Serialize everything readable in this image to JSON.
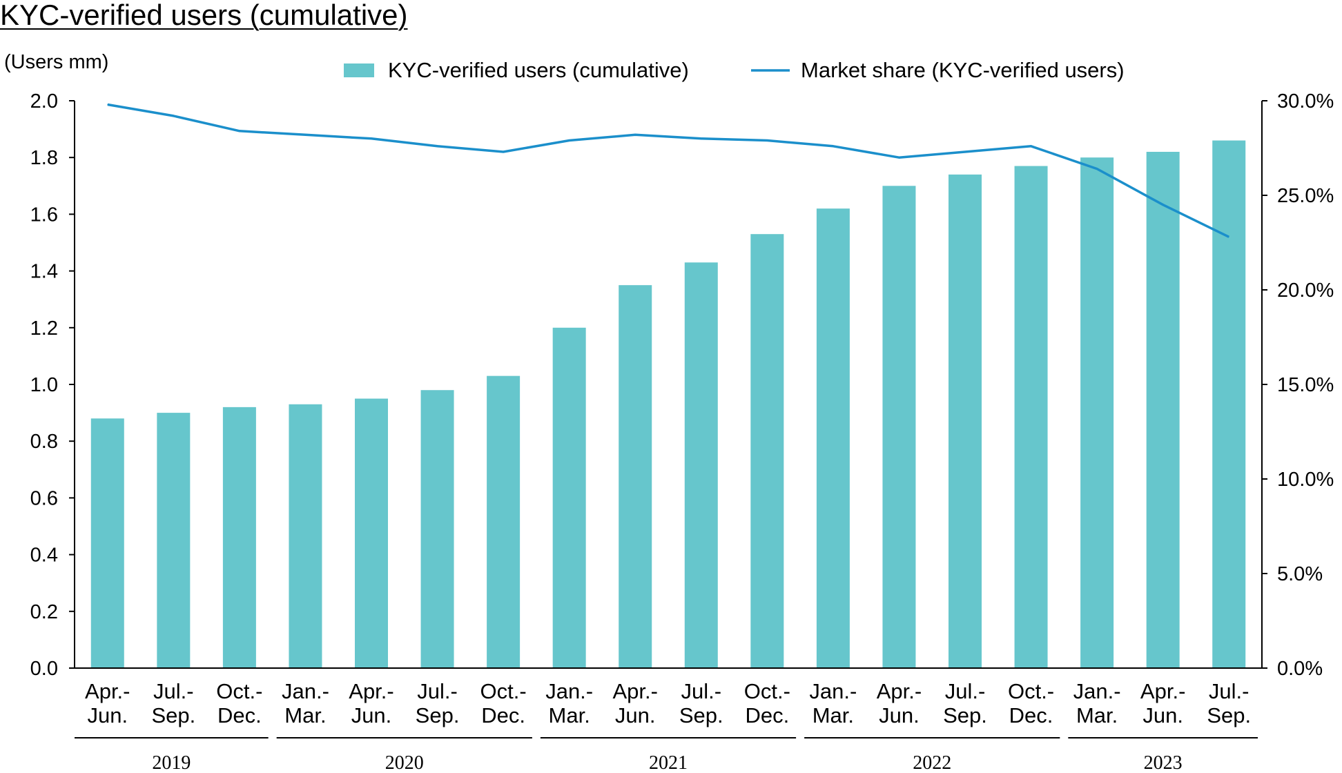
{
  "title": "KYC-verified users (cumulative)",
  "units_label": "(Users mm)",
  "colors": {
    "bar": "#66C6CC",
    "line": "#1B8FCB",
    "axis": "#000000"
  },
  "chart_data": {
    "type": "bar",
    "title": "KYC-verified users (cumulative)",
    "categories": [
      [
        "Apr.-",
        "Jun."
      ],
      [
        "Jul.-",
        "Sep."
      ],
      [
        "Oct.-",
        "Dec."
      ],
      [
        "Jan.-",
        "Mar."
      ],
      [
        "Apr.-",
        "Jun."
      ],
      [
        "Jul.-",
        "Sep."
      ],
      [
        "Oct.-",
        "Dec."
      ],
      [
        "Jan.-",
        "Mar."
      ],
      [
        "Apr.-",
        "Jun."
      ],
      [
        "Jul.-",
        "Sep."
      ],
      [
        "Oct.-",
        "Dec."
      ],
      [
        "Jan.-",
        "Mar."
      ],
      [
        "Apr.-",
        "Jun."
      ],
      [
        "Jul.-",
        "Sep."
      ],
      [
        "Oct.-",
        "Dec."
      ],
      [
        "Jan.-",
        "Mar."
      ],
      [
        "Apr.-",
        "Jun."
      ],
      [
        "Jul.-",
        "Sep."
      ]
    ],
    "year_groups": [
      {
        "label": "2019",
        "count": 3
      },
      {
        "label": "2020",
        "count": 4
      },
      {
        "label": "2021",
        "count": 4
      },
      {
        "label": "2022",
        "count": 4
      },
      {
        "label": "2023",
        "count": 3
      }
    ],
    "series": [
      {
        "name": "KYC-verified users (cumulative)",
        "type": "bar",
        "axis": "left",
        "values": [
          0.88,
          0.9,
          0.92,
          0.93,
          0.95,
          0.98,
          1.03,
          1.2,
          1.35,
          1.43,
          1.53,
          1.62,
          1.7,
          1.74,
          1.77,
          1.8,
          1.82,
          1.86
        ]
      },
      {
        "name": "Market share (KYC-verified users)",
        "type": "line",
        "axis": "right",
        "values": [
          29.8,
          29.2,
          28.4,
          28.2,
          28.0,
          27.6,
          27.3,
          27.9,
          28.2,
          28.0,
          27.9,
          27.6,
          27.0,
          27.3,
          27.6,
          26.4,
          24.5,
          22.8
        ]
      }
    ],
    "y_left": {
      "label": "Users mm",
      "min": 0,
      "max": 2.0,
      "ticks": [
        "0.0",
        "0.2",
        "0.4",
        "0.6",
        "0.8",
        "1.0",
        "1.2",
        "1.4",
        "1.6",
        "1.8",
        "2.0"
      ]
    },
    "y_right": {
      "min": 0,
      "max": 30,
      "ticks": [
        "0.0%",
        "5.0%",
        "10.0%",
        "15.0%",
        "20.0%",
        "25.0%",
        "30.0%"
      ]
    },
    "grid": false,
    "legend_position": "top-center"
  }
}
